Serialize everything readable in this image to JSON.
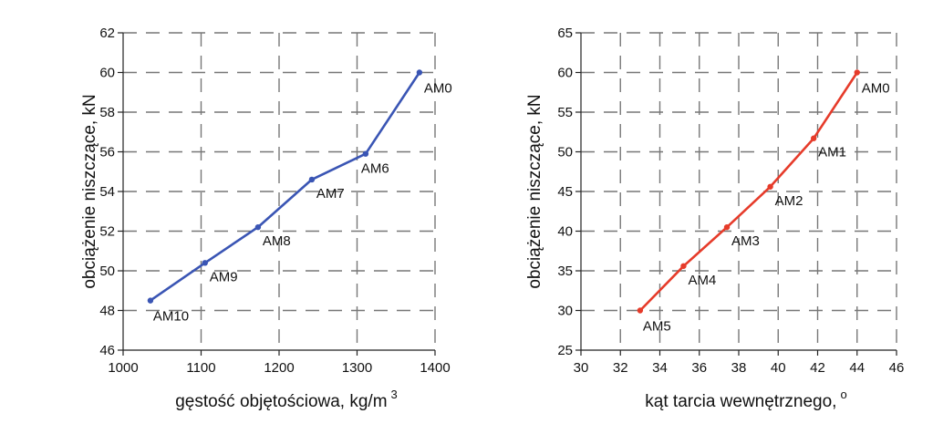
{
  "chart_data": [
    {
      "type": "line",
      "title": "",
      "xlabel": "gęstość objętościowa, kg/m",
      "xlabel_sup": "3",
      "ylabel": "obciążenie niszczące, kN",
      "xlim": [
        1000,
        1400
      ],
      "ylim": [
        46,
        62
      ],
      "x_ticks": [
        1000,
        1100,
        1200,
        1300,
        1400
      ],
      "y_ticks": [
        46,
        48,
        50,
        52,
        54,
        56,
        58,
        60,
        62
      ],
      "grid": true,
      "color": "#3a55b4",
      "series": [
        {
          "points": [
            {
              "x": 1035,
              "y": 48.5,
              "label": "AM10"
            },
            {
              "x": 1105,
              "y": 50.4,
              "label": "AM9"
            },
            {
              "x": 1173,
              "y": 52.2,
              "label": "AM8"
            },
            {
              "x": 1242,
              "y": 54.6,
              "label": "AM7"
            },
            {
              "x": 1311,
              "y": 55.9,
              "label": "AM6"
            },
            {
              "x": 1380,
              "y": 60.0,
              "label": "AM0"
            }
          ]
        }
      ]
    },
    {
      "type": "line",
      "title": "",
      "xlabel": "kąt tarcia wewnętrznego,",
      "xlabel_sup": "o",
      "ylabel": "obciążenie niszczące, kN",
      "xlim": [
        30,
        46
      ],
      "ylim": [
        25,
        65
      ],
      "x_ticks": [
        30,
        32,
        34,
        36,
        38,
        40,
        42,
        44,
        46
      ],
      "y_ticks": [
        25,
        30,
        35,
        40,
        45,
        50,
        55,
        60,
        65
      ],
      "grid": true,
      "color": "#e63b2a",
      "series": [
        {
          "points": [
            {
              "x": 33.0,
              "y": 30.0,
              "label": "AM5"
            },
            {
              "x": 35.2,
              "y": 35.6,
              "label": "AM4"
            },
            {
              "x": 37.4,
              "y": 40.5,
              "label": "AM3"
            },
            {
              "x": 39.6,
              "y": 45.6,
              "label": "AM2"
            },
            {
              "x": 41.8,
              "y": 51.7,
              "label": "AM1"
            },
            {
              "x": 44.0,
              "y": 60.0,
              "label": "AM0"
            }
          ]
        }
      ]
    }
  ]
}
